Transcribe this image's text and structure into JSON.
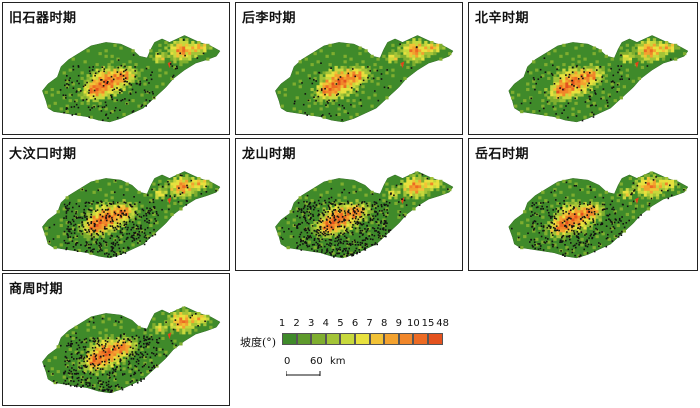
{
  "panels": [
    {
      "title": "旧石器时期",
      "site_density": 0.25
    },
    {
      "title": "后李时期",
      "site_density": 0.06
    },
    {
      "title": "北辛时期",
      "site_density": 0.12
    },
    {
      "title": "大汶口时期",
      "site_density": 0.75
    },
    {
      "title": "龙山时期",
      "site_density": 1.0
    },
    {
      "title": "岳石时期",
      "site_density": 0.6
    },
    {
      "title": "商周时期",
      "site_density": 0.7
    }
  ],
  "legend": {
    "label": "坡度(°)",
    "ticks": [
      "1",
      "2",
      "3",
      "4",
      "5",
      "6",
      "7",
      "8",
      "9",
      "10",
      "15",
      "48"
    ],
    "colors": [
      "#3f8a2a",
      "#5e9a2c",
      "#7fae2f",
      "#a3c437",
      "#c7d83c",
      "#e8e13e",
      "#f2c236",
      "#f3a22f",
      "#f0862a",
      "#ec6a23",
      "#e4521e"
    ]
  },
  "scale": {
    "start": "0",
    "end": "60",
    "unit": "km"
  },
  "colors": {
    "land": "#3f8a2a",
    "site": "#111111",
    "frame": "#222222"
  }
}
